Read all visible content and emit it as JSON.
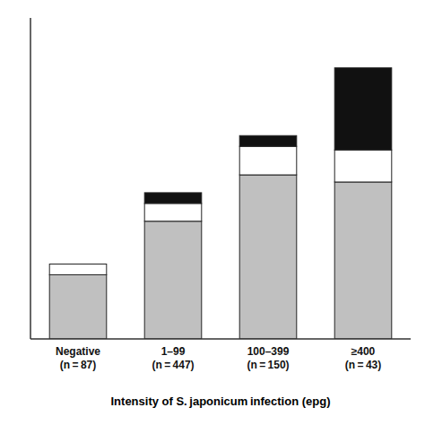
{
  "chart_data": {
    "type": "bar",
    "stacked": true,
    "x_label": "Intensity of S. japonicum infection (epg)",
    "categories": [
      "Negative\n(n = 87)",
      "1–99\n(n = 447)",
      "100–399\n(n = 150)",
      "≥400\n(n = 43)"
    ],
    "series": [
      {
        "color": "#c0c0c0",
        "values": [
          18,
          33,
          46,
          44
        ]
      },
      {
        "color": "#ffffff",
        "values": [
          3,
          5,
          8,
          9
        ]
      },
      {
        "color": "#111111",
        "values": [
          0,
          3,
          3,
          23
        ]
      }
    ],
    "ylim": [
      0,
      90
    ],
    "tick_labels": "x",
    "grid": false
  }
}
